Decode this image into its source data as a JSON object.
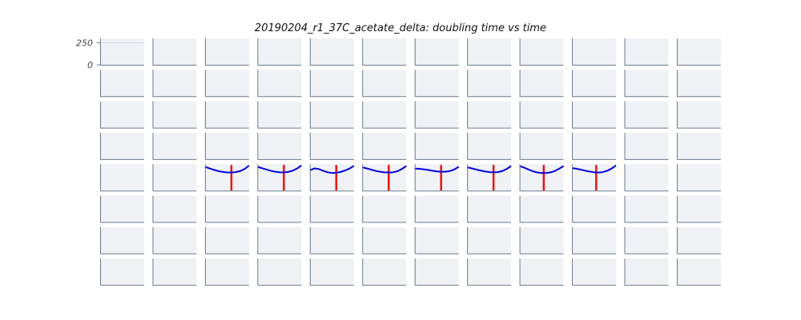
{
  "chart_data": {
    "type": "line",
    "title": "20190204_r1_37C_acetate_delta: doubling time vs time",
    "layout": "small-multiples",
    "grid_rows": 8,
    "grid_cols": 12,
    "y_ticks": [
      "250",
      "0"
    ],
    "y_tick_values": [
      250,
      0
    ],
    "ylim": [
      0,
      300
    ],
    "xlim": [
      0,
      100
    ],
    "colors": {
      "curve": "#0000dd",
      "marker": "#ee1111",
      "panel_background": "#eff1f5",
      "axis": "#6b7a8c"
    },
    "panels": [
      {
        "row": 4,
        "col": 2,
        "marker_x": 60,
        "x": [
          0,
          10,
          20,
          30,
          40,
          50,
          60,
          70,
          80,
          90,
          100
        ],
        "y": [
          270,
          252,
          236,
          222,
          212,
          206,
          205,
          210,
          222,
          245,
          285
        ]
      },
      {
        "row": 4,
        "col": 3,
        "marker_x": 60,
        "x": [
          0,
          10,
          20,
          30,
          40,
          50,
          60,
          70,
          80,
          90,
          100
        ],
        "y": [
          270,
          255,
          240,
          225,
          214,
          208,
          206,
          212,
          226,
          250,
          285
        ]
      },
      {
        "row": 4,
        "col": 4,
        "marker_x": 60,
        "x": [
          0,
          10,
          20,
          30,
          40,
          50,
          60,
          70,
          80,
          90,
          100
        ],
        "y": [
          230,
          252,
          245,
          225,
          208,
          200,
          202,
          212,
          228,
          250,
          280
        ]
      },
      {
        "row": 4,
        "col": 5,
        "marker_x": 60,
        "x": [
          0,
          10,
          20,
          30,
          40,
          50,
          60,
          70,
          80,
          90,
          100
        ],
        "y": [
          265,
          252,
          238,
          224,
          214,
          208,
          205,
          208,
          220,
          245,
          280
        ]
      },
      {
        "row": 4,
        "col": 6,
        "marker_x": 60,
        "x": [
          0,
          10,
          20,
          30,
          40,
          50,
          60,
          70,
          80,
          90,
          100
        ],
        "y": [
          250,
          247,
          242,
          235,
          226,
          218,
          214,
          214,
          222,
          240,
          270
        ]
      },
      {
        "row": 4,
        "col": 7,
        "marker_x": 60,
        "x": [
          0,
          10,
          20,
          30,
          40,
          50,
          60,
          70,
          80,
          90,
          100
        ],
        "y": [
          265,
          253,
          240,
          228,
          218,
          210,
          207,
          210,
          222,
          245,
          280
        ]
      },
      {
        "row": 4,
        "col": 8,
        "marker_x": 55,
        "x": [
          0,
          10,
          20,
          30,
          40,
          50,
          60,
          70,
          80,
          90,
          100
        ],
        "y": [
          280,
          262,
          240,
          220,
          206,
          200,
          200,
          206,
          222,
          248,
          280
        ]
      },
      {
        "row": 4,
        "col": 9,
        "marker_x": 55,
        "x": [
          0,
          10,
          20,
          30,
          40,
          50,
          60,
          70,
          80,
          90,
          100
        ],
        "y": [
          255,
          248,
          238,
          226,
          216,
          208,
          205,
          210,
          225,
          250,
          285
        ]
      }
    ]
  }
}
